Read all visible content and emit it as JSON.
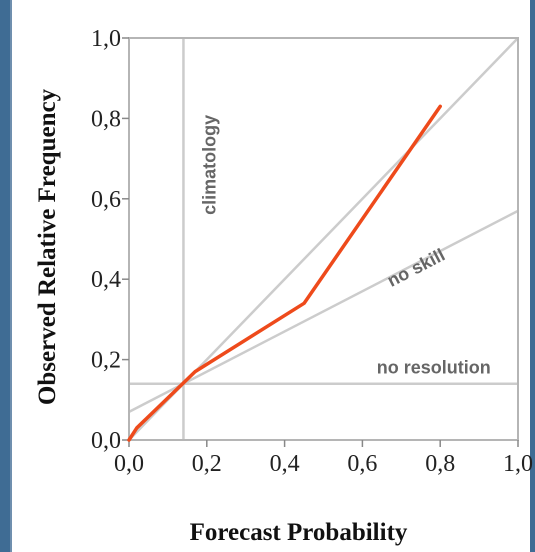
{
  "chart_data": {
    "type": "line",
    "xlabel": "Forecast Probability",
    "ylabel": "Observed Relative Frequency",
    "xlim": [
      0,
      1
    ],
    "ylim": [
      0,
      1
    ],
    "x_ticks": [
      "0,0",
      "0,2",
      "0,4",
      "0,6",
      "0,8",
      "1,0"
    ],
    "y_ticks": [
      "0,0",
      "0,2",
      "0,4",
      "0,6",
      "0,8",
      "1,0"
    ],
    "climatology": 0.14,
    "annotations": {
      "climatology": "climatology",
      "no_skill": "no skill",
      "no_resolution": "no resolution"
    },
    "series": [
      {
        "color": "#ee4a1b",
        "x": [
          0.0,
          0.02,
          0.17,
          0.45,
          0.8
        ],
        "y": [
          0.0,
          0.03,
          0.17,
          0.34,
          0.83
        ]
      }
    ],
    "reference_color": "#cccccc"
  }
}
